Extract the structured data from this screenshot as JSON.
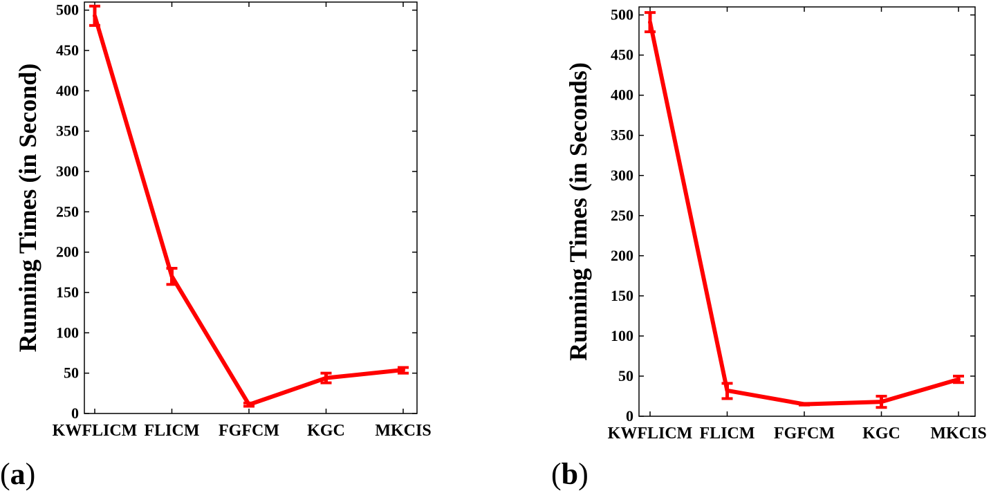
{
  "chart_data": [
    {
      "type": "line",
      "panel_label": "(a)",
      "ylabel": "Running Times (in Second)",
      "xlabel": "",
      "categories": [
        "KWFLICM",
        "FLICM",
        "FGFCM",
        "KGC",
        "MKCIS"
      ],
      "ylim": [
        0,
        510
      ],
      "yticks": [
        0,
        50,
        100,
        150,
        200,
        250,
        300,
        350,
        400,
        450,
        500
      ],
      "grid": false,
      "series": [
        {
          "values": [
            493,
            170,
            11,
            44,
            54
          ],
          "error_low": [
            481,
            160,
            9,
            38,
            50
          ],
          "error_high": [
            505,
            180,
            13,
            50,
            57
          ]
        }
      ]
    },
    {
      "type": "line",
      "panel_label": "(b)",
      "ylabel": "Running Times (in Seconds)",
      "xlabel": "",
      "categories": [
        "KWFLICM",
        "FLICM",
        "FGFCM",
        "KGC",
        "MKCIS"
      ],
      "ylim": [
        0,
        510
      ],
      "yticks": [
        0,
        50,
        100,
        150,
        200,
        250,
        300,
        350,
        400,
        450,
        500
      ],
      "grid": false,
      "series": [
        {
          "values": [
            491,
            32,
            15,
            18,
            46
          ],
          "error_low": [
            479,
            22,
            14,
            11,
            42
          ],
          "error_high": [
            503,
            41,
            16,
            25,
            50
          ]
        }
      ]
    }
  ],
  "colors": {
    "line": "#ff0000",
    "axis": "#000000"
  }
}
